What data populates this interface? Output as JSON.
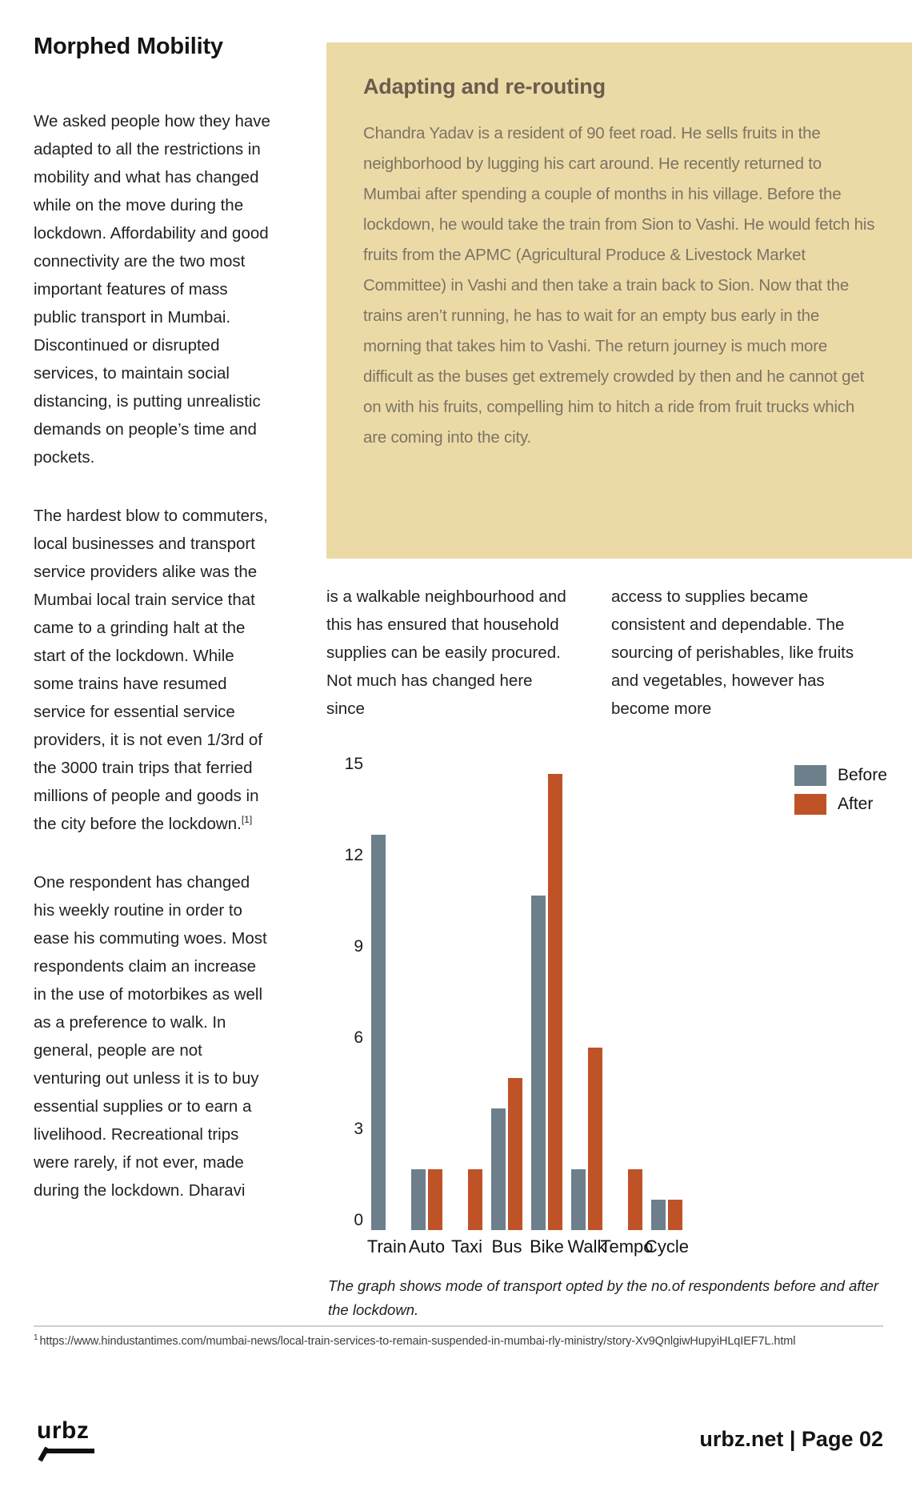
{
  "page": {
    "title": "Morphed Mobility",
    "footer": {
      "logo_text": "urbz",
      "site_and_page": "urbz.net | Page 02"
    }
  },
  "article": {
    "paragraphs": [
      "We asked people how they have adapted to all the restrictions in mobility and what has changed while on the move during the lockdown. Affordability and good connectivity are the two most important features of mass public transport in Mumbai. Discontinued or disrupted services, to maintain social distancing, is putting unrealistic demands on people’s time and pockets.",
      "The hardest blow to commuters, local businesses and transport service providers alike was the Mumbai local train service that came to a grinding halt at the start of the lockdown. While some trains have resumed service for essential service providers, it is not even 1/3rd of the 3000 train trips that ferried millions of people and goods in the city before the lockdown.",
      "One respondent has changed his weekly routine in order to ease his commuting woes. Most respondents claim an increase in the use of motorbikes as well as a preference to walk. In general, people are not venturing out unless it is to buy essential supplies or to earn a livelihood. Recreational trips were rarely, if not ever, made during the lockdown. Dharavi"
    ],
    "footnote_marker": "[1]",
    "continued_columns": [
      "is a walkable neighbourhood and this has ensured that household supplies can be easily procured. Not much has changed here since",
      "access to supplies became consistent and dependable. The sourcing of perishables, like fruits and vegetables, however has become more"
    ]
  },
  "callout": {
    "title": "Adapting and re-routing",
    "body": "Chandra Yadav is a resident of 90 feet road. He sells fruits in the neighborhood by lugging his cart around. He recently returned to Mumbai after spending a couple of months in his village. Before the lockdown, he would take the train from Sion to Vashi. He would fetch his fruits from the APMC (Agricultural Produce & Livestock Market Committee) in Vashi and then take a train back to Sion. Now that the trains aren’t running, he has to wait for an empty bus early in the morning that takes him to Vashi. The return journey is much more difficult as the buses get extremely crowded by then and he cannot get on with his fruits, compelling him to hitch a ride from fruit trucks which are coming into the city.",
    "background_color": "#ecdaa6"
  },
  "chart_data": {
    "type": "bar",
    "categories": [
      "Train",
      "Auto",
      "Taxi",
      "Bus",
      "Bike",
      "Walk",
      "Tempo",
      "Cycle"
    ],
    "series": [
      {
        "name": "Before",
        "color": "#6e7f8c",
        "values": [
          13,
          2,
          0,
          4,
          11,
          2,
          0,
          1
        ]
      },
      {
        "name": "After",
        "color": "#bf5227",
        "values": [
          0,
          2,
          2,
          5,
          15,
          6,
          2,
          1
        ]
      }
    ],
    "title": "",
    "xlabel": "",
    "ylabel": "",
    "ylim": [
      0,
      15
    ],
    "yticks": [
      0,
      3,
      6,
      9,
      12,
      15
    ],
    "grid": false,
    "legend_position": "top-right",
    "caption": "The graph shows mode of transport opted by the no.of respondents before and after the lockdown."
  },
  "footnote": {
    "marker": "1",
    "text": "https://www.hindustantimes.com/mumbai-news/local-train-services-to-remain-suspended-in-mumbai-rly-ministry/story-Xv9QnlgiwHupyiHLqIEF7L.html"
  }
}
